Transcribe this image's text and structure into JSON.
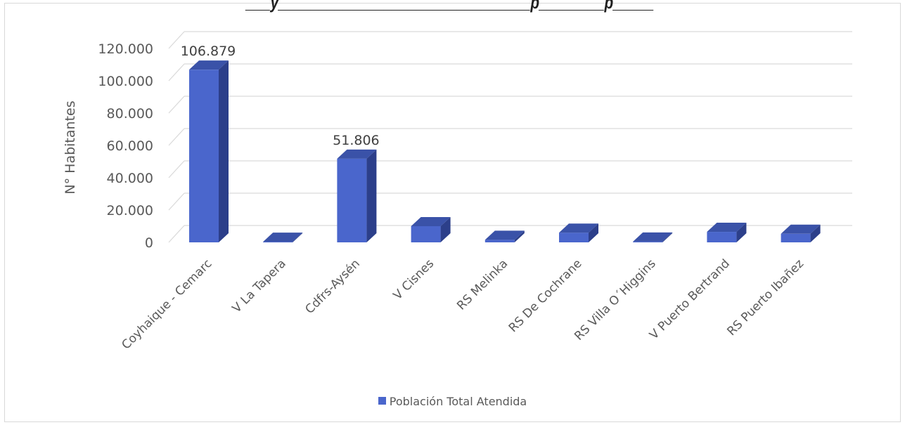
{
  "chart_data": {
    "type": "bar",
    "title": "",
    "xlabel": "",
    "ylabel": "N° Habitantes",
    "ylim": [
      0,
      120000
    ],
    "yticks": [
      "0",
      "20.000",
      "40.000",
      "60.000",
      "80.000",
      "100.000",
      "120.000"
    ],
    "grid": true,
    "legend_position": "bottom",
    "categories": [
      "Coyhaique - Cemarc",
      "V La Tapera",
      "Cdfrs-Aysén",
      "V Cisnes",
      "RS Melinka",
      "RS De Cochrane",
      "RS Villa O´Higgins",
      "V Puerto Bertrand",
      "RS Puerto Ibañez"
    ],
    "series": [
      {
        "name": "Población Total Atendida",
        "values": [
          106879,
          400,
          51806,
          10000,
          1600,
          6000,
          500,
          6500,
          5300
        ],
        "data_labels": [
          "106.879",
          "",
          "51.806",
          "",
          "",
          "",
          "",
          "",
          ""
        ]
      }
    ],
    "colors": {
      "front": "#4a66cc",
      "side": "#2c3f8a",
      "top": "#3a52a8"
    }
  }
}
